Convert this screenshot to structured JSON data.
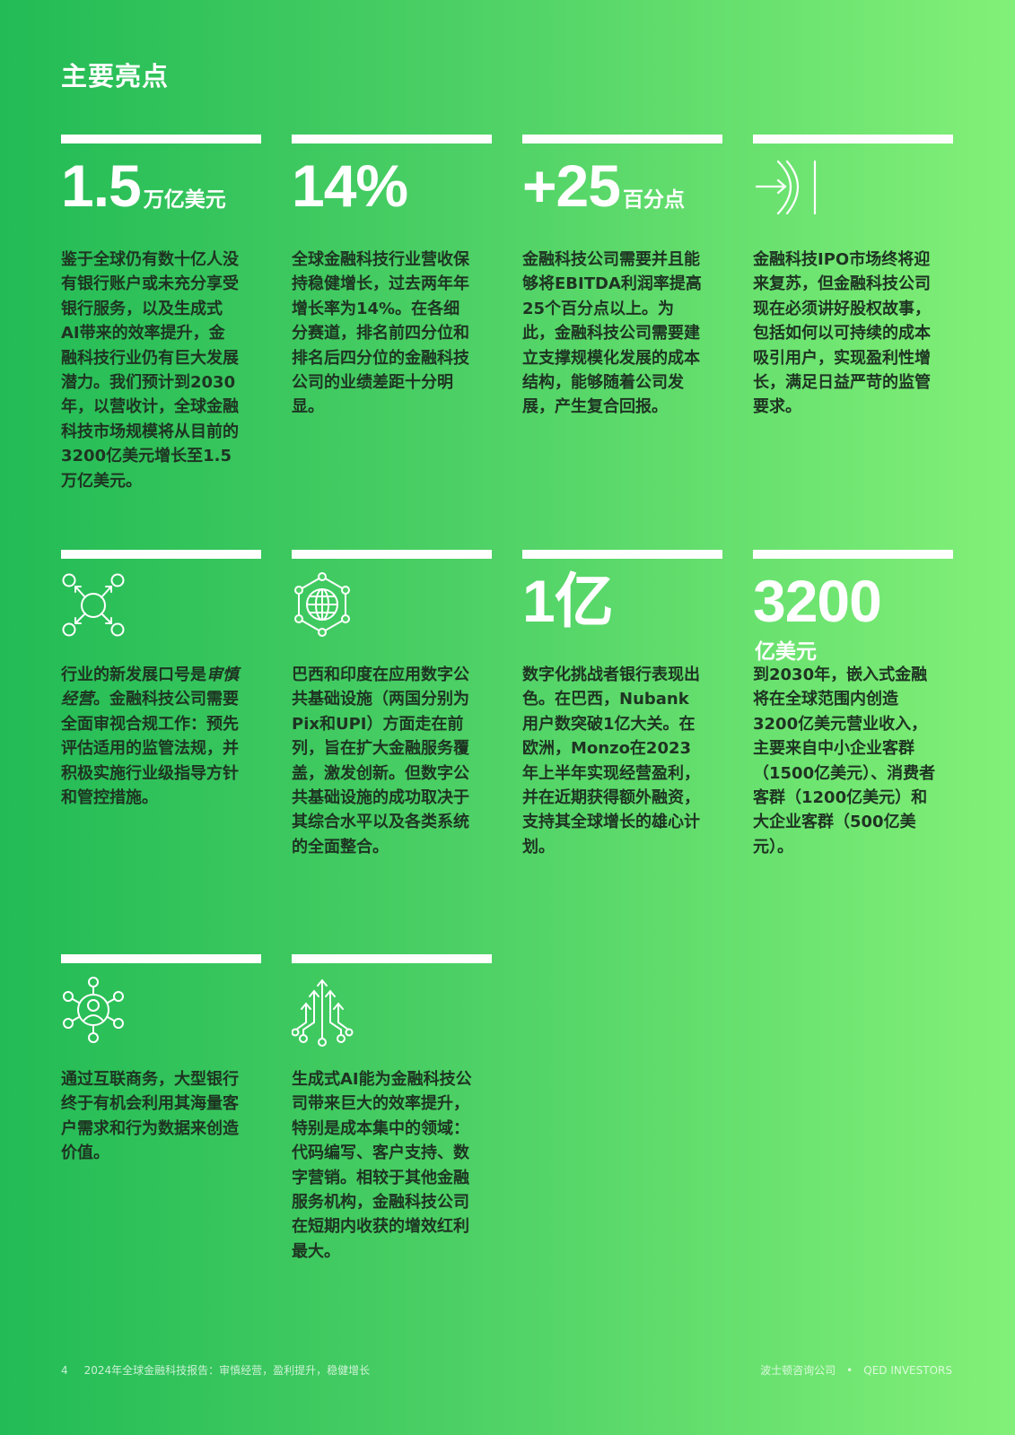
{
  "page": {
    "title": "主要亮点"
  },
  "cards": [
    {
      "stat": "1.5",
      "unit": "万亿美元",
      "body": "鉴于全球仍有数十亿人没有银行账户或未充分享受银行服务，以及生成式AI带来的效率提升，金融科技行业仍有巨大发展潜力。我们预计到2030年，以营收计，全球金融科技市场规模将从目前的3200亿美元增长至1.5万亿美元。"
    },
    {
      "stat": "14%",
      "unit": "",
      "body": "全球金融科技行业营收保持稳健增长，过去两年年增长率为14%。在各细分赛道，排名前四分位和排名后四分位的金融科技公司的业绩差距十分明显。"
    },
    {
      "stat": "+25",
      "unit": "百分点",
      "body": "金融科技公司需要并且能够将EBITDA利润率提高25个百分点以上。为此，金融科技公司需要建立支撑规模化发展的成本结构，能够随着公司发展，产生复合回报。"
    },
    {
      "icon": "ipo-arrow-icon",
      "body": "金融科技IPO市场终将迎来复苏，但金融科技公司现在必须讲好股权故事，包括如何以可持续的成本吸引用户，实现盈利性增长，满足日益严苛的监管要求。"
    },
    {
      "icon": "network-expand-icon",
      "body_pre": "行业的新发展口号是",
      "body_em": "审慎经营",
      "body_post": "。金融科技公司需要全面审视合规工作：预先评估适用的监管法规，并积极实施行业级指导方针和管控措施。"
    },
    {
      "icon": "globe-network-icon",
      "body": "巴西和印度在应用数字公共基础设施（两国分别为Pix和UPI）方面走在前列，旨在扩大金融服务覆盖，激发创新。但数字公共基础设施的成功取决于其综合水平以及各类系统的全面整合。"
    },
    {
      "stat": "1亿",
      "unit": "",
      "body": "数字化挑战者银行表现出色。在巴西，Nubank用户数突破1亿大关。在欧洲，Monzo在2023年上半年实现经营盈利，并在近期获得额外融资，支持其全球增长的雄心计划。"
    },
    {
      "stat": "3200",
      "unit": "亿美元",
      "body": "到2030年，嵌入式金融将在全球范围内创造3200亿美元营业收入，主要来自中小企业客群（1500亿美元）、消费者客群（1200亿美元）和大企业客群（500亿美元）。"
    },
    {
      "icon": "user-network-icon",
      "body": "通过互联商务，大型银行终于有机会利用其海量客户需求和行为数据来创造价值。"
    },
    {
      "icon": "ai-circuit-arrows-icon",
      "body": "生成式AI能为金融科技公司带来巨大的效率提升，特别是成本集中的领域：代码编写、客户支持、数字营销。相较于其他金融服务机构，金融科技公司在短期内收获的增效红利最大。"
    }
  ],
  "footer": {
    "page_number": "4",
    "report_title": "2024年全球金融科技报告：审慎经营，盈利提升，稳健增长",
    "org1": "波士顿咨询公司",
    "separator": "•",
    "org2": "QED INVESTORS"
  }
}
